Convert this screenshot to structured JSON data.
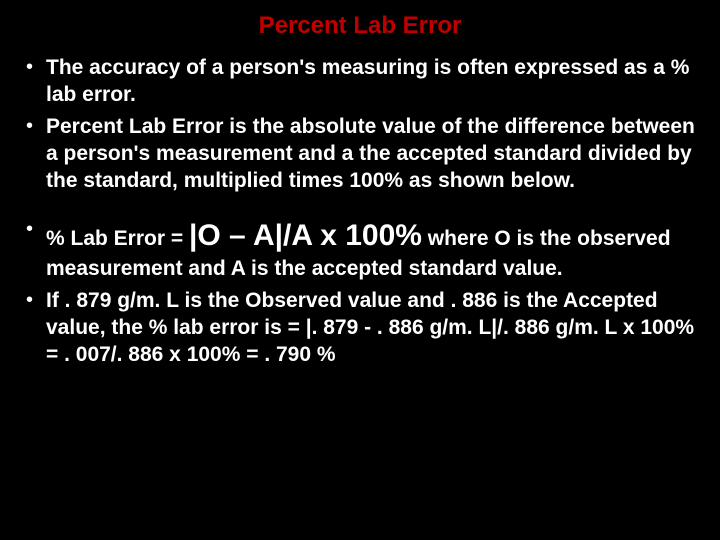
{
  "slide": {
    "title": "Percent Lab Error",
    "title_color": "#c00000",
    "background_color": "#000000",
    "text_color": "#ffffff",
    "bullets": [
      {
        "text": "The accuracy of a person's measuring is often expressed as a % lab error."
      },
      {
        "text": "Percent Lab Error is the absolute value of the difference between a person's measurement and a the accepted standard divided by the standard, multiplied times 100% as shown below."
      },
      {
        "prefix": "% Lab Error = ",
        "formula": "|O – A|/A  x 100%",
        "suffix": "  where O is the observed measurement and A is the accepted standard value."
      },
      {
        "text": "If . 879 g/m. L is the Observed value and . 886 is the Accepted value, the % lab error is = |. 879 - . 886 g/m. L|/. 886 g/m. L x 100% = . 007/. 886 x 100% = . 790 %"
      }
    ]
  }
}
